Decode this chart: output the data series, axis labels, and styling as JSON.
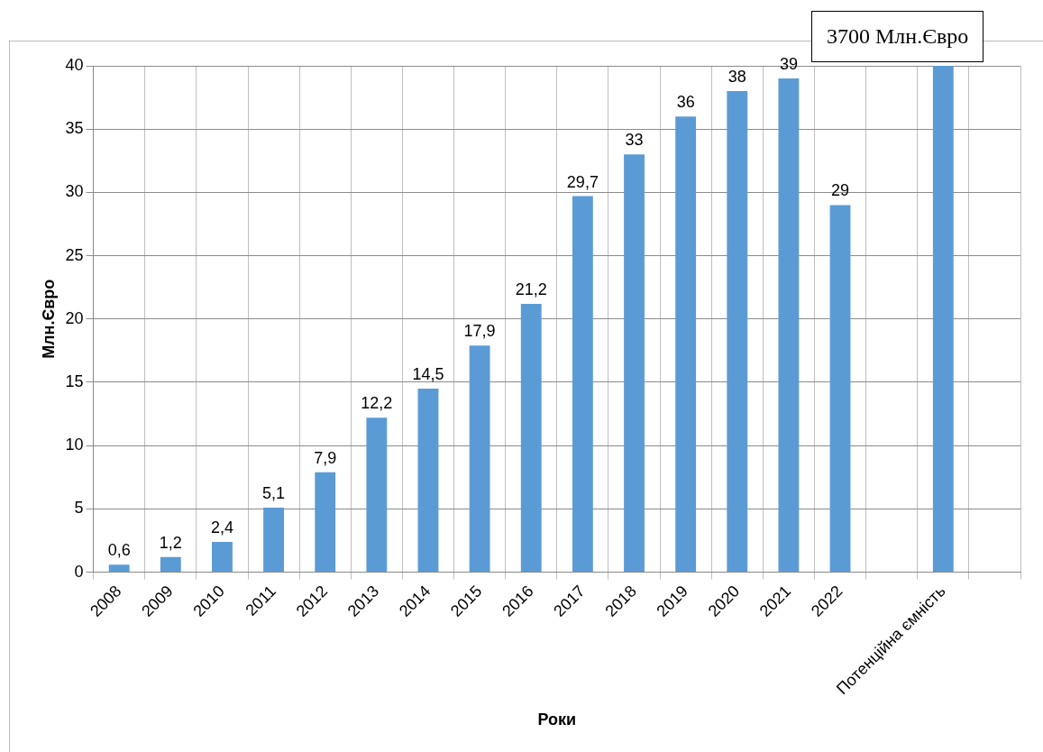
{
  "chart_data": {
    "type": "bar",
    "xlabel": "Роки",
    "ylabel": "Млн.Євро",
    "categories": [
      "2008",
      "2009",
      "2010",
      "2011",
      "2012",
      "2013",
      "2014",
      "2015",
      "2016",
      "2017",
      "2018",
      "2019",
      "2020",
      "2021",
      "2022",
      null,
      "Потенційна ємність",
      null
    ],
    "values": [
      0.6,
      1.2,
      2.4,
      5.1,
      7.9,
      12.2,
      14.5,
      17.9,
      21.2,
      29.7,
      33,
      36,
      38,
      39,
      29,
      null,
      40,
      null
    ],
    "value_labels": [
      "0,6",
      "1,2",
      "2,4",
      "5,1",
      "7,9",
      "12,2",
      "14,5",
      "17,9",
      "21,2",
      "29,7",
      "33",
      "36",
      "38",
      "39",
      "29",
      null,
      null,
      null
    ],
    "color": "#5b9bd5",
    "ylim": [
      0,
      40
    ],
    "yticks": [
      0,
      5,
      10,
      15,
      20,
      25,
      30,
      35,
      40
    ],
    "grid": true,
    "legend": false,
    "annotations": [
      "3700 Млн.Євро"
    ]
  }
}
